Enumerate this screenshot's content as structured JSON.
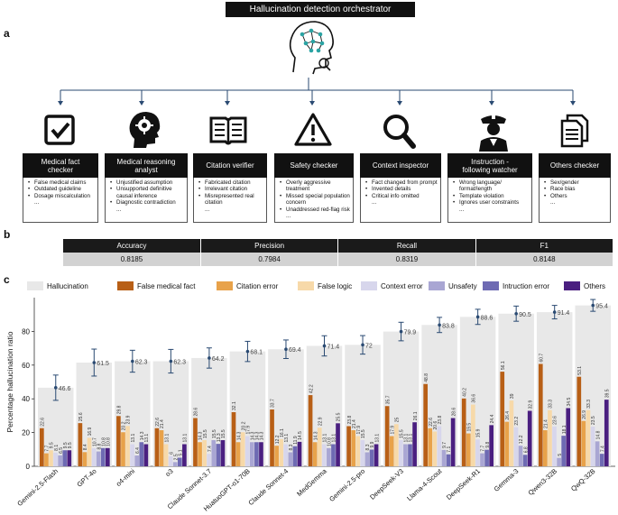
{
  "panels": {
    "a": "a",
    "b": "b",
    "c": "c"
  },
  "orchestrator": {
    "title": "Hallucination detection orchestrator"
  },
  "agents": [
    {
      "name": "Medical fact\nchecker",
      "icon": "checkbox-icon",
      "items": [
        "False medical claims",
        "Outdated guideline",
        "Dosage miscalculation",
        "..."
      ]
    },
    {
      "name": "Medical reasoning\nanalyst",
      "icon": "brain-head-icon",
      "items": [
        "Unjustified assumption",
        "Unsupported definitive causal inference",
        "Diagnostic contradiction",
        "..."
      ]
    },
    {
      "name": "Citation verifier",
      "icon": "book-icon",
      "items": [
        "Fabricated citation",
        "Irrelevant citation",
        "Misrepresented real citation",
        "..."
      ]
    },
    {
      "name": "Safety checker",
      "icon": "warning-icon",
      "items": [
        "Overly aggressive treatment",
        "Missed special population concern",
        "Unaddressed red-flag risk",
        "..."
      ]
    },
    {
      "name": "Context inspector",
      "icon": "magnifier-icon",
      "items": [
        "Fact changed from prompt",
        "Invented details",
        "Critical info omitted",
        "..."
      ]
    },
    {
      "name": "Instruction -\nfollowing watcher",
      "icon": "police-officer-icon",
      "items": [
        "Wrong language/ format/length",
        "Template violation",
        "Ignores user constraints",
        "..."
      ]
    },
    {
      "name": "Others checker",
      "icon": "documents-icon",
      "items": [
        "Sex/gender",
        "Race bias",
        "Others",
        "..."
      ]
    }
  ],
  "metrics": {
    "headers": [
      "Accuracy",
      "Precision",
      "Recall",
      "F1"
    ],
    "values": [
      "0.8185",
      "0.7984",
      "0.8319",
      "0.8148"
    ]
  },
  "chart_data": {
    "type": "bar",
    "ylabel": "Percentage hallucination ratio",
    "ylim": [
      0,
      100
    ],
    "yticks": [
      0,
      20,
      40,
      60,
      80
    ],
    "categories": [
      "Gemini-2.5-Flash",
      "GPT-4o",
      "o4-mini",
      "o3",
      "Claude Sonnet-3.7",
      "HuatuoGPT-o1-70B",
      "Claude Sonnet-4",
      "MedGemma",
      "Gemini-2.5-pro",
      "DeepSeek-V3",
      "Llama-4-Scout",
      "DeepSeek-R1",
      "Gemma-3",
      "Qwen3-32B",
      "QwQ-32B"
    ],
    "total": {
      "name": "Hallucination",
      "color": "#e8e8e8",
      "values": [
        46.6,
        61.5,
        62.3,
        62.3,
        64.2,
        68.1,
        69.4,
        71.4,
        72.0,
        79.9,
        83.8,
        88.6,
        90.5,
        91.4,
        95.4
      ]
    },
    "series": [
      {
        "name": "False medical fact",
        "color": "#b85f16",
        "values": [
          22.6,
          25.6,
          29.8,
          22.6,
          28.6,
          32.1,
          33.7,
          42.2,
          23.8,
          35.7,
          48.8,
          40.2,
          56.1,
          60.7,
          53.1
        ]
      },
      {
        "name": "Citation error",
        "color": "#e8a24a",
        "values": [
          7.7,
          8.4,
          20.2,
          21.4,
          14.3,
          14.3,
          12.2,
          14.3,
          21.4,
          17.9,
          22.6,
          19.5,
          26.4,
          21.4,
          26.9
        ]
      },
      {
        "name": "False logic",
        "color": "#f7d9a9",
        "values": [
          9.5,
          16.9,
          23.9,
          13.1,
          15.5,
          20.2,
          16.1,
          22.9,
          17.9,
          25.0,
          20.6,
          36.6,
          39.0,
          33.3,
          33.3
        ]
      },
      {
        "name": "Context error",
        "color": "#d7d6ec",
        "values": [
          8.1,
          10.7,
          13.1,
          6.0,
          7.4,
          17.9,
          13.1,
          13.1,
          15.5,
          15.5,
          23.8,
          15.9,
          23.2,
          23.6,
          23.5
        ]
      },
      {
        "name": "Unsafety",
        "color": "#a9a6d3",
        "values": [
          6.5,
          8.8,
          6.4,
          2.5,
          15.5,
          14.3,
          8.3,
          10.8,
          8.3,
          13.1,
          9.7,
          7.7,
          12.2,
          5.0,
          14.8
        ]
      },
      {
        "name": "Intruction error",
        "color": "#6e6ab3",
        "values": [
          9.5,
          10.8,
          14.3,
          5.1,
          13.3,
          14.3,
          11.9,
          13.1,
          9.9,
          13.1,
          7.1,
          9.8,
          6.8,
          18.1,
          7.4
        ]
      },
      {
        "name": "Others",
        "color": "#4a1f80",
        "values": [
          9.5,
          10.8,
          13.1,
          13.1,
          15.5,
          14.3,
          14.5,
          25.5,
          13.1,
          26.1,
          28.6,
          24.4,
          32.9,
          34.5,
          39.5
        ]
      }
    ],
    "error_bars": [
      7.5,
      8,
      6.5,
      7,
      6,
      6,
      5.5,
      6,
      5.5,
      5.5,
      4.5,
      4.5,
      4.5,
      4,
      3.5
    ],
    "legend_placement": "top"
  }
}
